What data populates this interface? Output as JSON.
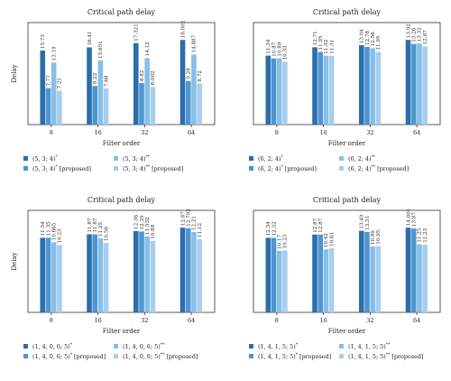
{
  "colors": [
    "#2a6eab",
    "#4f95d1",
    "#86bfe8",
    "#a8cdee"
  ],
  "chart_data": [
    {
      "type": "bar",
      "title": "Critical path delay",
      "xlabel": "Filter order",
      "ylabel": "Delay",
      "categories": [
        "8",
        "16",
        "32",
        "64"
      ],
      "legend_position": "bottom",
      "series": [
        {
          "name": "(5, 3; 4)",
          "sup": "*",
          "suffix": "",
          "values": [
            15.73,
            16.41,
            17.321,
            18.002
          ],
          "labels": [
            "15.73",
            "16.41",
            "17.321",
            "18.002"
          ]
        },
        {
          "name": "(5, 3; 4)",
          "sup": "*",
          "suffix": " [proposed]",
          "values": [
            7.77,
            8.22,
            8.82,
            9.28
          ],
          "labels": [
            "7.77",
            "8.22",
            "8.82",
            "9.28"
          ]
        },
        {
          "name": "(5, 3; 4)",
          "sup": "**",
          "suffix": "",
          "values": [
            13.19,
            13.651,
            14.12,
            14.887
          ],
          "labels": [
            "13.19",
            "13.651",
            "14.12",
            "14.887"
          ]
        },
        {
          "name": "(5, 3; 4)",
          "sup": "**",
          "suffix": " [proposed]",
          "values": [
            7.21,
            7.68,
            8.002,
            8.72
          ],
          "labels": [
            "7.21",
            "7.68",
            "8.002",
            "8.72"
          ]
        }
      ]
    },
    {
      "type": "bar",
      "title": "Critical path delay",
      "xlabel": "Filter order",
      "ylabel": "",
      "categories": [
        "8",
        "16",
        "32",
        "64"
      ],
      "legend_position": "bottom",
      "series": [
        {
          "name": "(6, 2; 4)",
          "sup": "*",
          "suffix": "",
          "values": [
            11.34,
            12.71,
            13.04,
            13.92
          ],
          "labels": [
            "11.34",
            "12.71",
            "13.04",
            "13.92"
          ]
        },
        {
          "name": "(6, 2; 4)",
          "sup": "*",
          "suffix": " [proposed]",
          "values": [
            10.87,
            11.95,
            12.78,
            13.26
          ],
          "labels": [
            "10.87",
            "11.95",
            "12.78",
            "13.26"
          ]
        },
        {
          "name": "(6, 2; 4)",
          "sup": "**",
          "suffix": "",
          "values": [
            10.89,
            11.32,
            12.56,
            13.32
          ],
          "labels": [
            "10.89",
            "11.32",
            "12.56",
            "13.32"
          ]
        },
        {
          "name": "(6, 2; 4)",
          "sup": "**",
          "suffix": " [proposed]",
          "values": [
            10.33,
            11.31,
            11.95,
            12.87
          ],
          "labels": [
            "10.33",
            "11.31",
            "11.95",
            "12.87"
          ]
        }
      ]
    },
    {
      "type": "bar",
      "title": "Critical path delay",
      "xlabel": "Filter order",
      "ylabel": "Delay",
      "categories": [
        "8",
        "16",
        "32",
        "64"
      ],
      "legend_position": "bottom",
      "series": [
        {
          "name": "(1, 4, 0, 6; 5)",
          "sup": "*",
          "suffix": "",
          "values": [
            11.34,
            11.87,
            12.36,
            12.87
          ],
          "labels": [
            "11.34",
            "11.87",
            "12.36",
            "12.87"
          ]
        },
        {
          "name": "(1, 4, 0, 6; 5)",
          "sup": "*",
          "suffix": " [proposed]",
          "values": [
            11.35,
            11.87,
            12.29,
            12.792
          ],
          "labels": [
            "11.35",
            "11.87",
            "12.29",
            "12.792"
          ]
        },
        {
          "name": "(1, 4, 0, 6; 5)",
          "sup": "**",
          "suffix": "",
          "values": [
            10.665,
            11.25,
            11.532,
            12.21
          ],
          "labels": [
            "10.665",
            "11.25",
            "11.532",
            "12.21"
          ]
        },
        {
          "name": "(1, 4, 0, 6; 5)",
          "sup": "**",
          "suffix": " [proposed]",
          "values": [
            10.23,
            10.56,
            10.88,
            11.12
          ],
          "labels": [
            "10.23",
            "10.56",
            "10.88",
            "11.12"
          ]
        }
      ]
    },
    {
      "type": "bar",
      "title": "Critical path delay",
      "xlabel": "Filter order",
      "ylabel": "",
      "categories": [
        "8",
        "16",
        "32",
        "64"
      ],
      "legend_position": "bottom",
      "series": [
        {
          "name": "(1, 4, 1, 5; 5)",
          "sup": "*",
          "suffix": "",
          "values": [
            12.34,
            12.87,
            13.49,
            14.001
          ],
          "labels": [
            "12.34",
            "12.87",
            "13.49",
            "14.001"
          ]
        },
        {
          "name": "(1, 4, 1, 5; 5)",
          "sup": "*",
          "suffix": " [proposed]",
          "values": [
            12.32,
            12.87,
            13.31,
            13.87
          ],
          "labels": [
            "12.32",
            "12.87",
            "13.31",
            "13.87"
          ]
        },
        {
          "name": "(1, 4, 1, 5; 5)",
          "sup": "**",
          "suffix": "",
          "values": [
            10.17,
            10.42,
            10.89,
            11.25
          ],
          "labels": [
            "10.17",
            "10.42",
            "10.89",
            "11.25"
          ]
        },
        {
          "name": "(1, 4, 1, 5; 5)",
          "sup": "**",
          "suffix": " [proposed]",
          "values": [
            10.23,
            10.61,
            10.95,
            11.23
          ],
          "labels": [
            "10.23",
            "10.61",
            "10.95",
            "11.23"
          ]
        }
      ]
    }
  ]
}
